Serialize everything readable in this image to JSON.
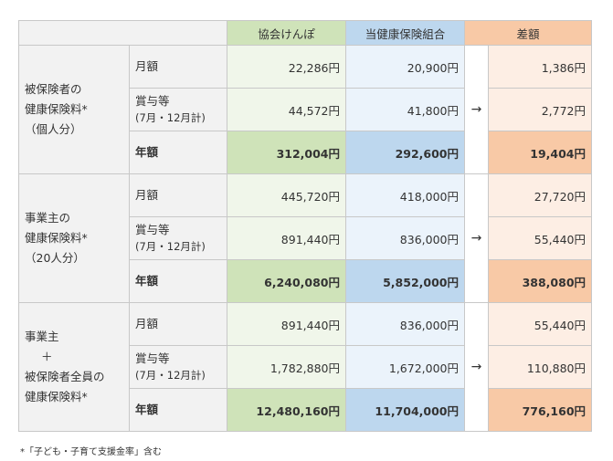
{
  "header": {
    "kyokai": "協会けんぽ",
    "tou": "当健康保険組合",
    "sagaku": "差額"
  },
  "groups": [
    {
      "label_lines": [
        "被保険者の",
        "健康保険料*",
        "（個人分）"
      ],
      "rows": [
        {
          "label": "月額",
          "sublabel": "",
          "kyokai": "22,286円",
          "tou": "20,900円",
          "diff": "1,386円"
        },
        {
          "label": "賞与等",
          "sublabel": "(7月・12月計)",
          "kyokai": "44,572円",
          "tou": "41,800円",
          "diff": "2,772円"
        },
        {
          "label": "年額",
          "sublabel": "",
          "kyokai": "312,004円",
          "tou": "292,600円",
          "diff": "19,404円"
        }
      ]
    },
    {
      "label_lines": [
        "事業主の",
        "健康保険料*",
        "（20人分）"
      ],
      "rows": [
        {
          "label": "月額",
          "sublabel": "",
          "kyokai": "445,720円",
          "tou": "418,000円",
          "diff": "27,720円"
        },
        {
          "label": "賞与等",
          "sublabel": "(7月・12月計)",
          "kyokai": "891,440円",
          "tou": "836,000円",
          "diff": "55,440円"
        },
        {
          "label": "年額",
          "sublabel": "",
          "kyokai": "6,240,080円",
          "tou": "5,852,000円",
          "diff": "388,080円"
        }
      ]
    },
    {
      "label_lines": [
        "事業主",
        "＋",
        "被保険者全員の",
        "健康保険料*"
      ],
      "rows": [
        {
          "label": "月額",
          "sublabel": "",
          "kyokai": "891,440円",
          "tou": "836,000円",
          "diff": "55,440円"
        },
        {
          "label": "賞与等",
          "sublabel": "(7月・12月計)",
          "kyokai": "1,782,880円",
          "tou": "1,672,000円",
          "diff": "110,880円"
        },
        {
          "label": "年額",
          "sublabel": "",
          "kyokai": "12,480,160円",
          "tou": "11,704,000円",
          "diff": "776,160円"
        }
      ]
    }
  ],
  "arrow": "→",
  "footnote": "*「子ども・子育て支援金率」含む",
  "colors": {
    "kyokai_header": "#cfe3b9",
    "tou_header": "#bdd7ee",
    "sagaku_header": "#f8c9a6"
  }
}
